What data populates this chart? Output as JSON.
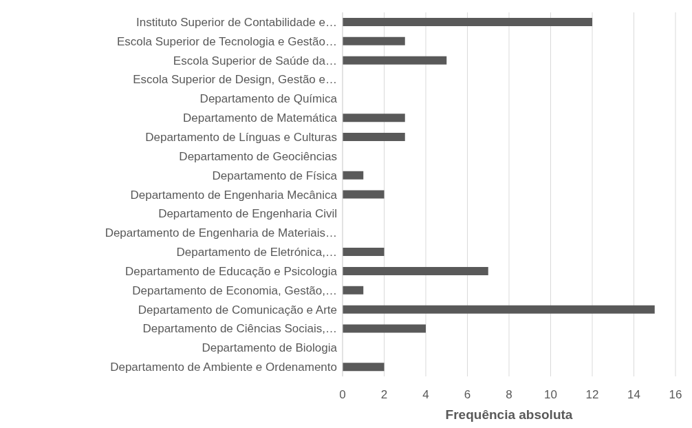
{
  "chart_data": {
    "type": "bar",
    "orientation": "horizontal",
    "xlabel": "Frequência absoluta",
    "categories": [
      "Instituto Superior de Contabilidade e…",
      "Escola Superior de Tecnologia e Gestão…",
      "Escola Superior de Saúde da…",
      "Escola Superior de Design, Gestão e…",
      "Departamento de Química",
      "Departamento de Matemática",
      "Departamento de Línguas e Culturas",
      "Departamento de Geociências",
      "Departamento de Física",
      "Departamento de Engenharia Mecânica",
      "Departamento de Engenharia Civil",
      "Departamento de Engenharia de Materiais…",
      "Departamento de Eletrónica,…",
      "Departamento de Educação e Psicologia",
      "Departamento de Economia, Gestão,…",
      "Departamento de Comunicação e Arte",
      "Departamento de Ciências Sociais,…",
      "Departamento de Biologia",
      "Departamento de Ambiente e Ordenamento"
    ],
    "values": [
      12,
      3,
      5,
      0,
      0,
      3,
      3,
      0,
      1,
      2,
      0,
      0,
      2,
      7,
      1,
      15,
      4,
      0,
      2
    ],
    "color": "#595959",
    "xlim": [
      0,
      16
    ],
    "xticks": [
      0,
      2,
      4,
      6,
      8,
      10,
      12,
      14,
      16
    ],
    "grid": "x"
  }
}
